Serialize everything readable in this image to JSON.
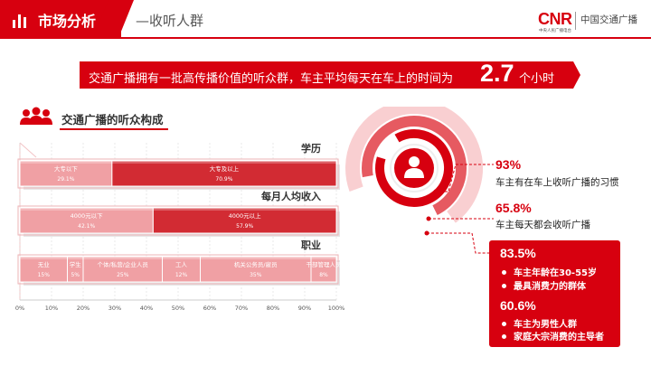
{
  "header": {
    "title": "市场分析",
    "subtitle": "—收听人群",
    "logo_main": "CNR",
    "logo_small": "中央人民广播电台",
    "logo_channel": "中国交通广播"
  },
  "banner": {
    "text": "交通广播拥有一批高传播价值的听众群，车主平均每天在车上的时间为",
    "number": "2.7",
    "unit": "个小时"
  },
  "section": {
    "title": "交通广播的听众构成"
  },
  "colors": {
    "brand": "#d7000f",
    "light": "#f0a0a4",
    "dark": "#d22b33"
  },
  "chart_data": {
    "type": "bar",
    "orientation": "horizontal-stacked",
    "xlim": [
      0,
      100
    ],
    "xticks": [
      "0%",
      "10%",
      "20%",
      "30%",
      "40%",
      "50%",
      "60%",
      "70%",
      "80%",
      "90%",
      "100%"
    ],
    "groups": [
      {
        "title": "学历",
        "segments": [
          {
            "label": "大专以下",
            "value": 29.1,
            "value_label": "29.1%"
          },
          {
            "label": "大专及以上",
            "value": 70.9,
            "value_label": "70.9%"
          }
        ]
      },
      {
        "title": "每月人均收入",
        "segments": [
          {
            "label": "4000元以下",
            "value": 42.1,
            "value_label": "42.1%"
          },
          {
            "label": "4000元以上",
            "value": 57.9,
            "value_label": "57.9%"
          }
        ]
      },
      {
        "title": "职业",
        "segments": [
          {
            "label": "无业",
            "value": 15,
            "value_label": "15%"
          },
          {
            "label": "学生",
            "value": 5,
            "value_label": "5%"
          },
          {
            "label": "个体/私营/企业人员",
            "value": 25,
            "value_label": "25%"
          },
          {
            "label": "工人",
            "value": 12,
            "value_label": "12%"
          },
          {
            "label": "机关公务员/雇员",
            "value": 35,
            "value_label": "35%"
          },
          {
            "label": "干部管理人员",
            "value": 8,
            "value_label": "8%"
          }
        ]
      }
    ]
  },
  "stats": [
    {
      "value": "93%",
      "desc": "车主有在车上收听广播的习惯"
    },
    {
      "value": "65.8%",
      "desc": "车主每天都会收听广播"
    }
  ],
  "box": [
    {
      "value": "83.5%",
      "bullets": [
        "车主年龄在30-55岁",
        "最具消费力的群体"
      ]
    },
    {
      "value": "60.6%",
      "bullets": [
        "车主为男性人群",
        "家庭大宗消费的主导者"
      ]
    }
  ]
}
